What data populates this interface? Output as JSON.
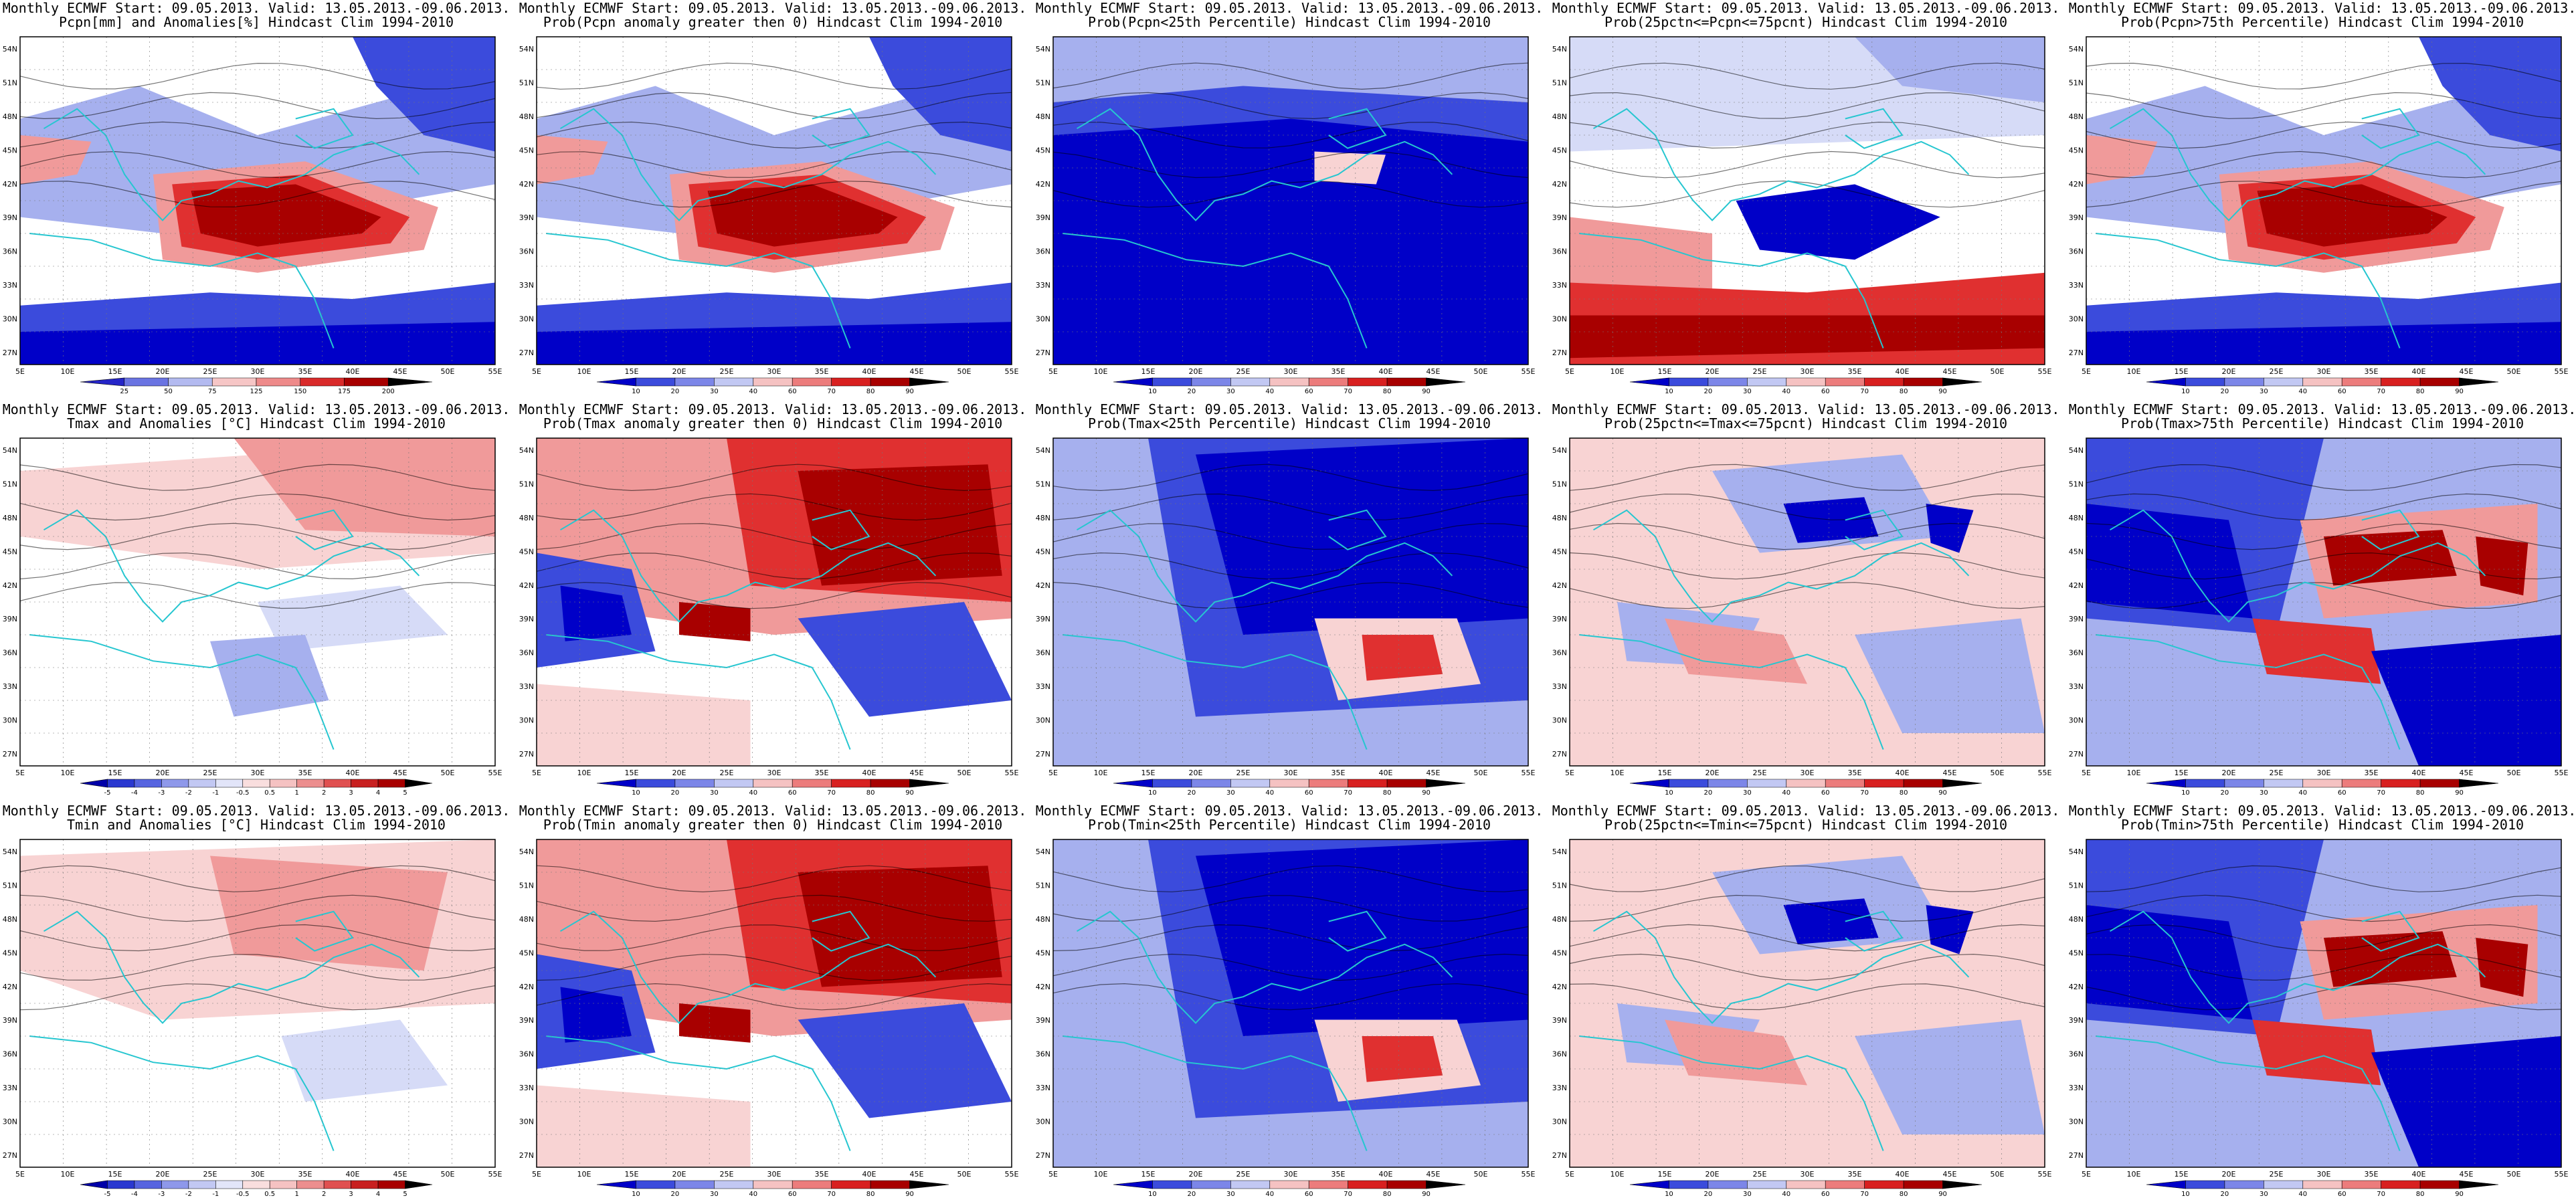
{
  "lat_ticks": [
    "54N",
    "51N",
    "48N",
    "45N",
    "42N",
    "39N",
    "36N",
    "33N",
    "30N",
    "27N"
  ],
  "lon_ticks": [
    "5E",
    "10E",
    "15E",
    "20E",
    "25E",
    "30E",
    "35E",
    "40E",
    "45E",
    "50E",
    "55E"
  ],
  "scales": {
    "anom_pcpn": [
      "25",
      "50",
      "75",
      "125",
      "150",
      "175",
      "200"
    ],
    "prob": [
      "10",
      "20",
      "30",
      "40",
      "60",
      "70",
      "80",
      "90"
    ],
    "anom_temp": [
      "-5",
      "-4",
      "-3",
      "-2",
      "-1",
      "-0.5",
      "0.5",
      "1",
      "2",
      "3",
      "4",
      "5"
    ]
  },
  "colors": {
    "dark_blue": "#0000c8",
    "mid_blue": "#3b4bdc",
    "light_blue": "#a6b0ee",
    "pale_blue": "#d6dbf7",
    "pale_red": "#f8d3d3",
    "light_red": "#f09a9a",
    "mid_red": "#e03030",
    "dark_red": "#a80000",
    "coast": "#26c6d0",
    "contour": "#000000"
  },
  "panels": [
    {
      "title1": "Monthly ECMWF Start: 09.05.2013. Valid: 13.05.2013.-09.06.2013.",
      "title2": "Pcpn[mm] and Anomalies[%] Hindcast Clim 1994-2010",
      "scale": "anom_pcpn",
      "scheme": "pcpn"
    },
    {
      "title1": "Monthly ECMWF Start: 09.05.2013. Valid: 13.05.2013.-09.06.2013.",
      "title2": "Prob(Pcpn anomaly greater then 0) Hindcast Clim 1994-2010",
      "scale": "prob",
      "scheme": "pcpn"
    },
    {
      "title1": "Monthly ECMWF Start: 09.05.2013. Valid: 13.05.2013.-09.06.2013.",
      "title2": "Prob(Pcpn<25th Percentile) Hindcast Clim 1994-2010",
      "scale": "prob",
      "scheme": "low"
    },
    {
      "title1": "Monthly ECMWF Start: 09.05.2013. Valid: 13.05.2013.-09.06.2013.",
      "title2": "Prob(25pctn<=Pcpn<=75pcnt) Hindcast Clim 1994-2010",
      "scale": "prob",
      "scheme": "midband"
    },
    {
      "title1": "Monthly ECMWF Start: 09.05.2013. Valid: 13.05.2013.-09.06.2013.",
      "title2": "Prob(Pcpn>75th Percentile) Hindcast Clim 1994-2010",
      "scale": "prob",
      "scheme": "pcpn"
    },
    {
      "title1": "Monthly ECMWF Start: 09.05.2013. Valid: 13.05.2013.-09.06.2013.",
      "title2": "Tmax and Anomalies [°C] Hindcast Clim 1994-2010",
      "scale": "anom_temp",
      "scheme": "anomT"
    },
    {
      "title1": "Monthly ECMWF Start: 09.05.2013. Valid: 13.05.2013.-09.06.2013.",
      "title2": "Prob(Tmax anomaly greater then 0) Hindcast Clim 1994-2010",
      "scale": "prob",
      "scheme": "warm"
    },
    {
      "title1": "Monthly ECMWF Start: 09.05.2013. Valid: 13.05.2013.-09.06.2013.",
      "title2": "Prob(Tmax<25th Percentile) Hindcast Clim 1994-2010",
      "scale": "prob",
      "scheme": "cold"
    },
    {
      "title1": "Monthly ECMWF Start: 09.05.2013. Valid: 13.05.2013.-09.06.2013.",
      "title2": "Prob(25pctn<=Tmax<=75pcnt) Hindcast Clim 1994-2010",
      "scale": "prob",
      "scheme": "mixed"
    },
    {
      "title1": "Monthly ECMWF Start: 09.05.2013. Valid: 13.05.2013.-09.06.2013.",
      "title2": "Prob(Tmax>75th Percentile) Hindcast Clim 1994-2010",
      "scale": "prob",
      "scheme": "warm2"
    },
    {
      "title1": "Monthly ECMWF Start: 09.05.2013. Valid: 13.05.2013.-09.06.2013.",
      "title2": "Tmin and Anomalies [°C] Hindcast Clim 1994-2010",
      "scale": "anom_temp",
      "scheme": "anomT2"
    },
    {
      "title1": "Monthly ECMWF Start: 09.05.2013. Valid: 13.05.2013.-09.06.2013.",
      "title2": "Prob(Tmin anomaly greater then 0) Hindcast Clim 1994-2010",
      "scale": "prob",
      "scheme": "warm"
    },
    {
      "title1": "Monthly ECMWF Start: 09.05.2013. Valid: 13.05.2013.-09.06.2013.",
      "title2": "Prob(Tmin<25th Percentile) Hindcast Clim 1994-2010",
      "scale": "prob",
      "scheme": "cold"
    },
    {
      "title1": "Monthly ECMWF Start: 09.05.2013. Valid: 13.05.2013.-09.06.2013.",
      "title2": "Prob(25pctn<=Tmin<=75pcnt) Hindcast Clim 1994-2010",
      "scale": "prob",
      "scheme": "mixed"
    },
    {
      "title1": "Monthly ECMWF Start: 09.05.2013. Valid: 13.05.2013.-09.06.2013.",
      "title2": "Prob(Tmin>75th Percentile) Hindcast Clim 1994-2010",
      "scale": "prob",
      "scheme": "warm2"
    }
  ]
}
